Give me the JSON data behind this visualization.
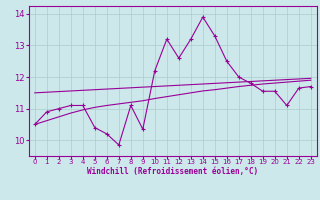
{
  "xlabel": "Windchill (Refroidissement éolien,°C)",
  "x": [
    0,
    1,
    2,
    3,
    4,
    5,
    6,
    7,
    8,
    9,
    10,
    11,
    12,
    13,
    14,
    15,
    16,
    17,
    18,
    19,
    20,
    21,
    22,
    23
  ],
  "windchill": [
    10.5,
    10.9,
    11.0,
    11.1,
    11.1,
    10.4,
    10.2,
    9.85,
    11.1,
    10.35,
    12.2,
    13.2,
    12.6,
    13.2,
    13.9,
    13.3,
    12.5,
    12.0,
    11.8,
    11.55,
    11.55,
    11.1,
    11.65,
    11.7
  ],
  "smooth1": [
    11.5,
    11.52,
    11.54,
    11.56,
    11.58,
    11.6,
    11.62,
    11.64,
    11.66,
    11.68,
    11.7,
    11.72,
    11.74,
    11.76,
    11.78,
    11.8,
    11.82,
    11.84,
    11.86,
    11.88,
    11.9,
    11.92,
    11.94,
    11.96
  ],
  "smooth2": [
    10.5,
    10.62,
    10.74,
    10.86,
    10.96,
    11.04,
    11.1,
    11.15,
    11.2,
    11.25,
    11.32,
    11.38,
    11.44,
    11.5,
    11.56,
    11.6,
    11.65,
    11.7,
    11.74,
    11.78,
    11.81,
    11.84,
    11.87,
    11.9
  ],
  "ylim": [
    9.5,
    14.25
  ],
  "yticks": [
    10,
    11,
    12,
    13,
    14
  ],
  "xticks": [
    0,
    1,
    2,
    3,
    4,
    5,
    6,
    7,
    8,
    9,
    10,
    11,
    12,
    13,
    14,
    15,
    16,
    17,
    18,
    19,
    20,
    21,
    22,
    23
  ],
  "line_color": "#990099",
  "bg_color": "#cce8ea",
  "grid_color": "#aacccc"
}
